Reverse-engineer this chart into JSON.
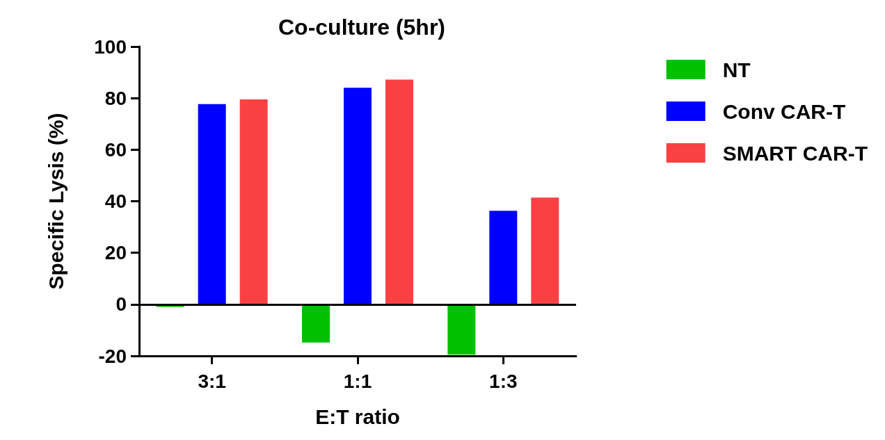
{
  "chart_data": {
    "type": "bar",
    "title": "Co-culture (5hr)",
    "xlabel": "E:T ratio",
    "ylabel": "Specific Lysis (%)",
    "categories": [
      "3:1",
      "1:1",
      "1:3"
    ],
    "series": [
      {
        "name": "NT",
        "color": "#00c000",
        "values": [
          -1,
          -14.8,
          -19.5
        ]
      },
      {
        "name": "Conv CAR-T",
        "color": "#0000ff",
        "values": [
          77.7,
          84.0,
          36.3
        ]
      },
      {
        "name": "SMART CAR-T",
        "color": "#f94144",
        "values": [
          79.5,
          87.2,
          41.4
        ]
      }
    ],
    "ylim": [
      -20,
      100
    ],
    "yticks": [
      -20,
      0,
      20,
      40,
      60,
      80,
      100
    ],
    "ref_lines": [
      {
        "axis": "y",
        "value": 0,
        "color": "#000000"
      }
    ],
    "grid": false,
    "legend": "right"
  }
}
